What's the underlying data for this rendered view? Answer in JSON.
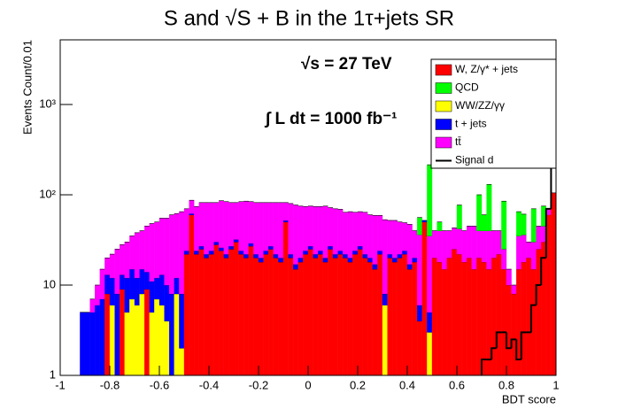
{
  "chart_data": {
    "type": "histogram",
    "title": "S and √S + B  in the 1τ+jets SR",
    "x_label": "BDT score",
    "y_label": "Events Count/0.01",
    "annotations": [
      "√s = 27 TeV",
      "∫ L dt = 1000 fb⁻¹"
    ],
    "log_y": true,
    "stacked": true,
    "legend": "top-right",
    "xlim": [
      -1,
      1
    ],
    "ylim": [
      1,
      5200
    ],
    "xticks": [
      -1,
      -0.8,
      -0.6,
      -0.4,
      -0.2,
      0,
      0.2,
      0.4,
      0.6,
      0.8,
      1
    ],
    "yticks": [
      1,
      10,
      {
        "value": 100,
        "label": "10²"
      },
      {
        "value": 1000,
        "label": "10³"
      }
    ],
    "bins": [
      -1,
      -0.98,
      -0.96,
      -0.94,
      -0.92,
      -0.9,
      -0.88,
      -0.86,
      -0.84,
      -0.82,
      -0.8,
      -0.78,
      -0.76,
      -0.74,
      -0.72,
      -0.7,
      -0.68,
      -0.66,
      -0.64,
      -0.62,
      -0.6,
      -0.58,
      -0.56,
      -0.54,
      -0.52,
      -0.5,
      -0.48,
      -0.46,
      -0.44,
      -0.42,
      -0.4,
      -0.38,
      -0.36,
      -0.34,
      -0.32,
      -0.3,
      -0.28,
      -0.26,
      -0.24,
      -0.22,
      -0.2,
      -0.18,
      -0.16,
      -0.14,
      -0.12,
      -0.1,
      -0.08,
      -0.06,
      -0.04,
      -0.02,
      0,
      0.02,
      0.04,
      0.06,
      0.08,
      0.1,
      0.12,
      0.14,
      0.16,
      0.18,
      0.2,
      0.22,
      0.24,
      0.26,
      0.28,
      0.3,
      0.32,
      0.34,
      0.36,
      0.38,
      0.4,
      0.42,
      0.44,
      0.46,
      0.48,
      0.5,
      0.52,
      0.54,
      0.56,
      0.58,
      0.6,
      0.62,
      0.64,
      0.66,
      0.68,
      0.7,
      0.72,
      0.74,
      0.76,
      0.78,
      0.8,
      0.82,
      0.84,
      0.86,
      0.88,
      0.9,
      0.92,
      0.94,
      0.96,
      0.98,
      1
    ],
    "series": [
      {
        "name": "W, Z/γ* + jets",
        "color": "#ff0000",
        "values": [
          0,
          0,
          0,
          0,
          0,
          0,
          0,
          0,
          0,
          8,
          0,
          0,
          9,
          0,
          0,
          0,
          0,
          9,
          0,
          0,
          0,
          0,
          0,
          0,
          0,
          22,
          60,
          22,
          25,
          20,
          22,
          28,
          24,
          20,
          25,
          30,
          22,
          20,
          27,
          20,
          18,
          22,
          25,
          20,
          18,
          50,
          20,
          15,
          18,
          22,
          25,
          20,
          22,
          18,
          25,
          20,
          22,
          20,
          18,
          22,
          25,
          20,
          18,
          15,
          22,
          0,
          20,
          18,
          20,
          22,
          15,
          18,
          4,
          50,
          0,
          20,
          18,
          15,
          20,
          25,
          22,
          18,
          20,
          15,
          20,
          18,
          15,
          20,
          22,
          15,
          10,
          8,
          15,
          18,
          20,
          15,
          25,
          30,
          60,
          105
        ]
      },
      {
        "name": "QCD",
        "color": "#00ff00",
        "values": [
          0,
          0,
          0,
          0,
          0,
          0,
          0,
          0,
          0,
          0,
          0,
          0,
          0,
          0,
          0,
          0,
          0,
          0,
          0,
          0,
          0,
          0,
          0,
          0,
          0,
          0,
          0,
          0,
          0,
          0,
          0,
          0,
          0,
          0,
          0,
          0,
          0,
          0,
          0,
          0,
          0,
          0,
          0,
          0,
          0,
          0,
          0,
          0,
          0,
          0,
          0,
          0,
          0,
          0,
          0,
          0,
          0,
          0,
          0,
          0,
          0,
          0,
          0,
          0,
          0,
          0,
          0,
          0,
          0,
          0,
          0,
          0,
          20,
          0,
          180,
          0,
          10,
          0,
          0,
          0,
          35,
          0,
          0,
          0,
          60,
          20,
          90,
          0,
          0,
          60,
          0,
          0,
          30,
          25,
          0,
          40,
          0,
          30,
          0,
          0
        ]
      },
      {
        "name": "WW/ZZ/γγ",
        "color": "#ffff00",
        "values": [
          0,
          0,
          0,
          0,
          0,
          0,
          0,
          0,
          0,
          0,
          6,
          0,
          0,
          5,
          7,
          6,
          8,
          0,
          5,
          7,
          6,
          4,
          0,
          8,
          2,
          0,
          0,
          0,
          0,
          0,
          0,
          0,
          0,
          0,
          0,
          0,
          0,
          0,
          0,
          0,
          0,
          0,
          0,
          0,
          0,
          0,
          0,
          0,
          0,
          0,
          0,
          0,
          0,
          0,
          0,
          0,
          0,
          0,
          0,
          0,
          0,
          0,
          0,
          0,
          0,
          6,
          0,
          0,
          0,
          0,
          0,
          0,
          0,
          0,
          3,
          0,
          0,
          0,
          0,
          0,
          0,
          0,
          0,
          0,
          0,
          0,
          0,
          0,
          0,
          0,
          0,
          0,
          0,
          0,
          0,
          0,
          0,
          0,
          0,
          0
        ]
      },
      {
        "name": "t + jets",
        "color": "#0000ff",
        "values": [
          0,
          0,
          0,
          0,
          5,
          5,
          5,
          6,
          7,
          5,
          6,
          8,
          4,
          7,
          8,
          6,
          7,
          5,
          6,
          5,
          7,
          6,
          8,
          4,
          6,
          2,
          2,
          2,
          2,
          2,
          2,
          2,
          2,
          2,
          2,
          2,
          2,
          2,
          2,
          2,
          2,
          2,
          2,
          2,
          2,
          2,
          2,
          2,
          2,
          2,
          2,
          2,
          2,
          2,
          2,
          2,
          2,
          2,
          2,
          2,
          2,
          2,
          2,
          2,
          2,
          2,
          2,
          2,
          2,
          2,
          2,
          2,
          2,
          2,
          2,
          0,
          0,
          0,
          0,
          0,
          0,
          0,
          0,
          0,
          0,
          0,
          0,
          0,
          0,
          0,
          0,
          0,
          0,
          0,
          0,
          0,
          0,
          0,
          0,
          0
        ]
      },
      {
        "name": "tt̄",
        "color": "#ff00ff",
        "values": [
          0,
          0,
          0,
          0,
          0,
          0,
          2,
          4,
          8,
          7,
          10,
          17,
          15,
          18,
          20,
          26,
          25,
          31,
          37,
          38,
          42,
          45,
          52,
          50,
          57,
          46,
          25,
          50,
          55,
          60,
          58,
          52,
          60,
          62,
          55,
          50,
          60,
          63,
          55,
          60,
          62,
          58,
          55,
          60,
          62,
          30,
          58,
          60,
          55,
          50,
          48,
          52,
          50,
          55,
          45,
          48,
          45,
          42,
          45,
          40,
          38,
          42,
          40,
          42,
          35,
          45,
          30,
          32,
          28,
          25,
          30,
          20,
          30,
          0,
          30,
          20,
          22,
          25,
          20,
          18,
          20,
          22,
          25,
          30,
          20,
          22,
          25,
          20,
          18,
          10,
          5,
          2,
          20,
          18,
          10,
          15,
          20,
          15,
          10,
          0
        ]
      },
      {
        "name": "Signal d",
        "color": "#000000",
        "style": "step",
        "values": [
          0,
          0,
          0,
          0,
          0,
          0,
          0,
          0,
          0,
          0,
          0,
          0,
          0,
          0,
          0,
          0,
          0,
          0,
          0,
          0,
          0,
          0,
          0,
          0,
          0,
          0,
          0,
          0,
          0,
          0,
          0,
          0,
          0,
          0,
          0,
          0,
          0,
          0,
          0,
          0,
          0,
          0,
          0,
          0,
          0,
          0,
          0,
          0,
          0,
          0,
          0,
          0,
          0,
          0,
          0,
          0,
          0,
          0,
          0,
          0,
          0,
          0,
          0,
          0,
          0,
          0,
          0,
          0,
          0,
          0,
          0,
          0,
          0,
          0,
          0,
          0,
          0,
          0,
          0,
          0,
          0,
          0,
          0,
          0,
          0,
          1.5,
          1.5,
          2,
          3,
          3,
          2,
          2.5,
          1.5,
          3,
          3,
          6,
          10,
          20,
          70,
          480
        ]
      }
    ]
  }
}
